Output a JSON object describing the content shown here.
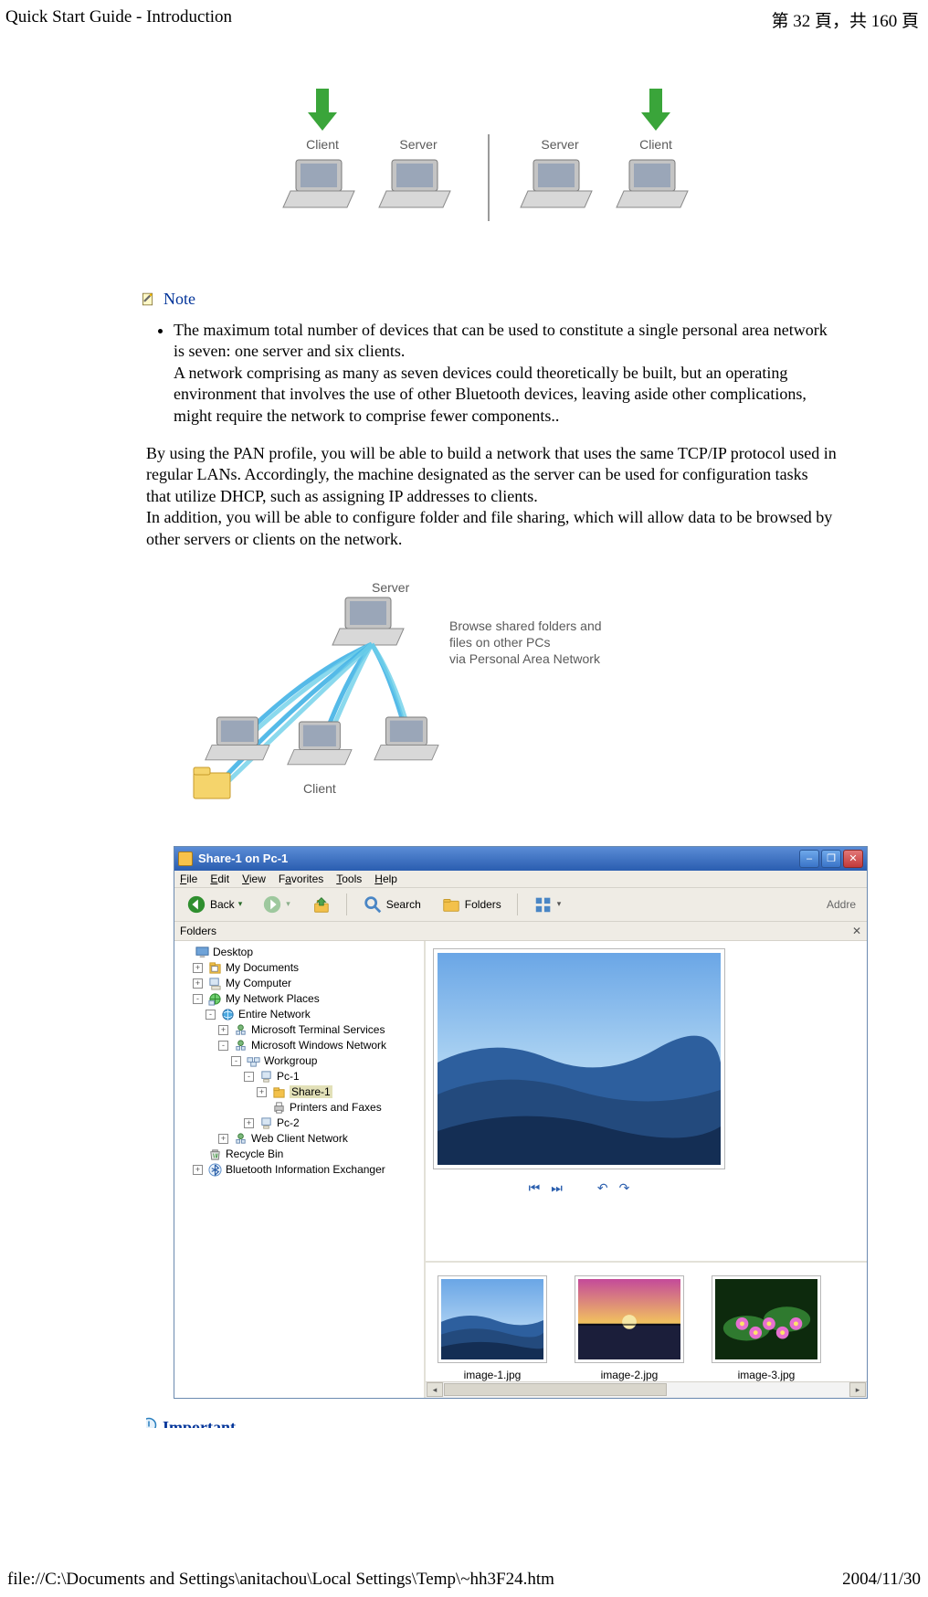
{
  "header": {
    "title": "Quick Start Guide - Introduction",
    "page_indicator": "第 32 頁，共 160 頁"
  },
  "footer": {
    "path": "file://C:\\Documents and Settings\\anitachou\\Local Settings\\Temp\\~hh3F24.htm",
    "date": "2004/11/30"
  },
  "top_diagram": {
    "labels": [
      "Client",
      "Server",
      "Server",
      "Client"
    ],
    "label_color": "#5a5a5a",
    "label_fontsize": 14,
    "arrow_color": "#3aa53a",
    "laptop_body_color": "#c4c4c4",
    "laptop_screen_color": "#9aa6b8",
    "divider_color": "#9a9a9a"
  },
  "note": {
    "label": "Note",
    "icon_colors": {
      "page": "#fff9c8",
      "pencil": "#6a6a6a",
      "tip": "#f2b600",
      "outline": "#7a6a2a"
    },
    "bullet": "The maximum total number of devices that can be used to constitute a single personal area network is seven: one server and six clients.",
    "bullet_line2": "A network comprising as many as seven devices could theoretically be built, but an operating environment that involves the use of other Bluetooth devices, leaving aside other complications, might require the network to comprise fewer components.."
  },
  "paragraph": "By using the PAN profile, you will be able to build a network that uses the same TCP/IP protocol used in regular LANs. Accordingly, the machine designated as the server can be used for configuration tasks that utilize DHCP, such as assigning IP addresses to clients.\nIn addition, you will be able to configure folder and file sharing, which will allow data to be browsed by other servers or clients on the network.",
  "mid_diagram": {
    "side_label": "　　　　",
    "server_label": "Server",
    "client_label": "Client",
    "caption": "Browse shared folders and\nfiles on other PCs\nvia Personal Area Network",
    "label_color": "#5a5a5a",
    "label_fontsize": 14,
    "wave_colors": [
      "#43b3e6",
      "#6ed0e9"
    ],
    "folder_color": "#f5d46b",
    "folder_outline": "#c79a2a",
    "laptop_body_color": "#c4c4c4",
    "laptop_screen_color": "#9aa6b8"
  },
  "explorer": {
    "title": "Share-1 on Pc-1",
    "titlebar_gradient": [
      "#5a8cd6",
      "#2a5db0"
    ],
    "window_controls": [
      "–",
      "❐",
      "✕"
    ],
    "menubar": [
      "File",
      "Edit",
      "View",
      "Favorites",
      "Tools",
      "Help"
    ],
    "toolbar": {
      "back": "Back",
      "search": "Search",
      "folders": "Folders",
      "address_label": "Addre",
      "back_icon_color": "#2f8f2f",
      "forward_icon_color": "#9ec89e",
      "up_icon_color": "#f3c14b",
      "search_icon_color": "#4a86c5",
      "folders_icon_color": "#f3c14b",
      "views_icon_color": "#4a86c5"
    },
    "folders_panel": {
      "header": "Folders",
      "close": "✕"
    },
    "tree": [
      {
        "indent": 0,
        "toggle": "",
        "icon": "desktop",
        "label": "Desktop"
      },
      {
        "indent": 1,
        "toggle": "+",
        "icon": "mydocs",
        "label": "My Documents"
      },
      {
        "indent": 1,
        "toggle": "+",
        "icon": "mycomp",
        "label": "My Computer"
      },
      {
        "indent": 1,
        "toggle": "-",
        "icon": "netplaces",
        "label": "My Network Places"
      },
      {
        "indent": 2,
        "toggle": "-",
        "icon": "globe",
        "label": "Entire Network"
      },
      {
        "indent": 3,
        "toggle": "+",
        "icon": "netnode",
        "label": "Microsoft Terminal Services"
      },
      {
        "indent": 3,
        "toggle": "-",
        "icon": "netnode",
        "label": "Microsoft Windows Network"
      },
      {
        "indent": 4,
        "toggle": "-",
        "icon": "workgroup",
        "label": "Workgroup"
      },
      {
        "indent": 5,
        "toggle": "-",
        "icon": "pc",
        "label": "Pc-1"
      },
      {
        "indent": 6,
        "toggle": "+",
        "icon": "folder",
        "label": "Share-1",
        "selected": true
      },
      {
        "indent": 6,
        "toggle": "",
        "icon": "printer",
        "label": "Printers and Faxes"
      },
      {
        "indent": 5,
        "toggle": "+",
        "icon": "pc",
        "label": "Pc-2"
      },
      {
        "indent": 3,
        "toggle": "+",
        "icon": "netnode",
        "label": "Web Client Network"
      },
      {
        "indent": 1,
        "toggle": "",
        "icon": "recycle",
        "label": "Recycle Bin"
      },
      {
        "indent": 1,
        "toggle": "+",
        "icon": "bt",
        "label": "Bluetooth Information Exchanger"
      }
    ],
    "preview": {
      "controls_color": "#2b5fae",
      "main_palette": {
        "sky_top": "#6aa6e6",
        "sky_mid": "#a9d1f2",
        "sky_low": "#d6ecfa",
        "ridge1": "#2d5f9e",
        "ridge2": "#234a7d",
        "ridge3": "#142e54"
      }
    },
    "thumbs": [
      {
        "label": "image-1.jpg",
        "palette": {
          "sky_top": "#6aa6e6",
          "sky_low": "#d6ecfa",
          "ridge1": "#2d5f9e",
          "ridge2": "#234a7d",
          "ridge3": "#142e54"
        }
      },
      {
        "label": "image-2.jpg",
        "palette": {
          "sky_top": "#c44a9a",
          "sky_mid": "#f2c35e",
          "sea": "#1b1e3a",
          "sun": "#f6e7a6"
        }
      },
      {
        "label": "image-3.jpg",
        "palette": {
          "bg": "#0d2a0d",
          "leaf": "#2f7a2f",
          "flower": "#e66fd0",
          "center": "#ffe36b"
        }
      }
    ]
  },
  "important": {
    "label": "Important",
    "icon_color": "#2a7fbf"
  }
}
